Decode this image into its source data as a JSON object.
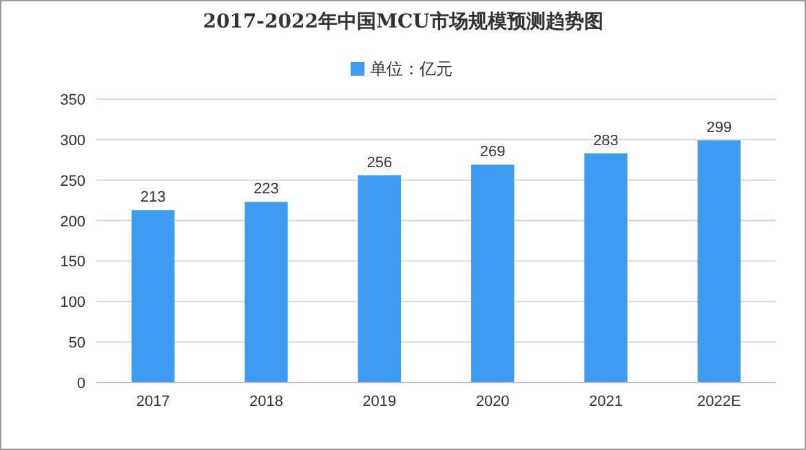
{
  "chart_data": {
    "type": "bar",
    "title": "2017-2022年中国MCU市场规模预测趋势图",
    "categories": [
      "2017",
      "2018",
      "2019",
      "2020",
      "2021",
      "2022E"
    ],
    "series": [
      {
        "name": "单位：亿元",
        "color": "#3d9bf0",
        "values": [
          213,
          223,
          256,
          269,
          283,
          299
        ]
      }
    ],
    "ylim": [
      0,
      350
    ],
    "yticks": [
      0,
      50,
      100,
      150,
      200,
      250,
      300,
      350
    ],
    "grid": "y",
    "legend": "top",
    "data_labels": true
  }
}
